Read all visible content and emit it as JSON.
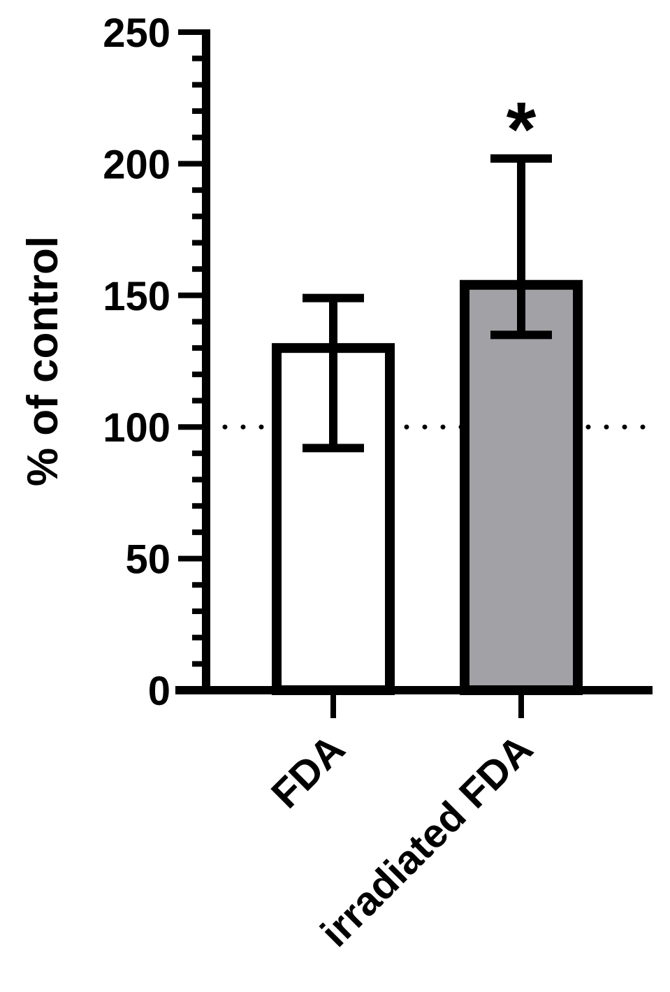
{
  "chart_data": {
    "type": "bar",
    "categories": [
      "FDA",
      "irradiated FDA"
    ],
    "values": [
      130,
      154
    ],
    "error_upper": [
      149,
      202
    ],
    "error_lower": [
      92,
      135
    ],
    "bar_fills": [
      "#ffffff",
      "#a2a1a6"
    ],
    "significance": [
      "",
      "*"
    ],
    "xlabel": "",
    "ylabel": "% of control",
    "ylim": [
      0,
      250
    ],
    "yticks": [
      "0",
      "50",
      "100",
      "150",
      "200",
      "250"
    ],
    "reference_line": 100,
    "grid": false,
    "legend": "none"
  }
}
